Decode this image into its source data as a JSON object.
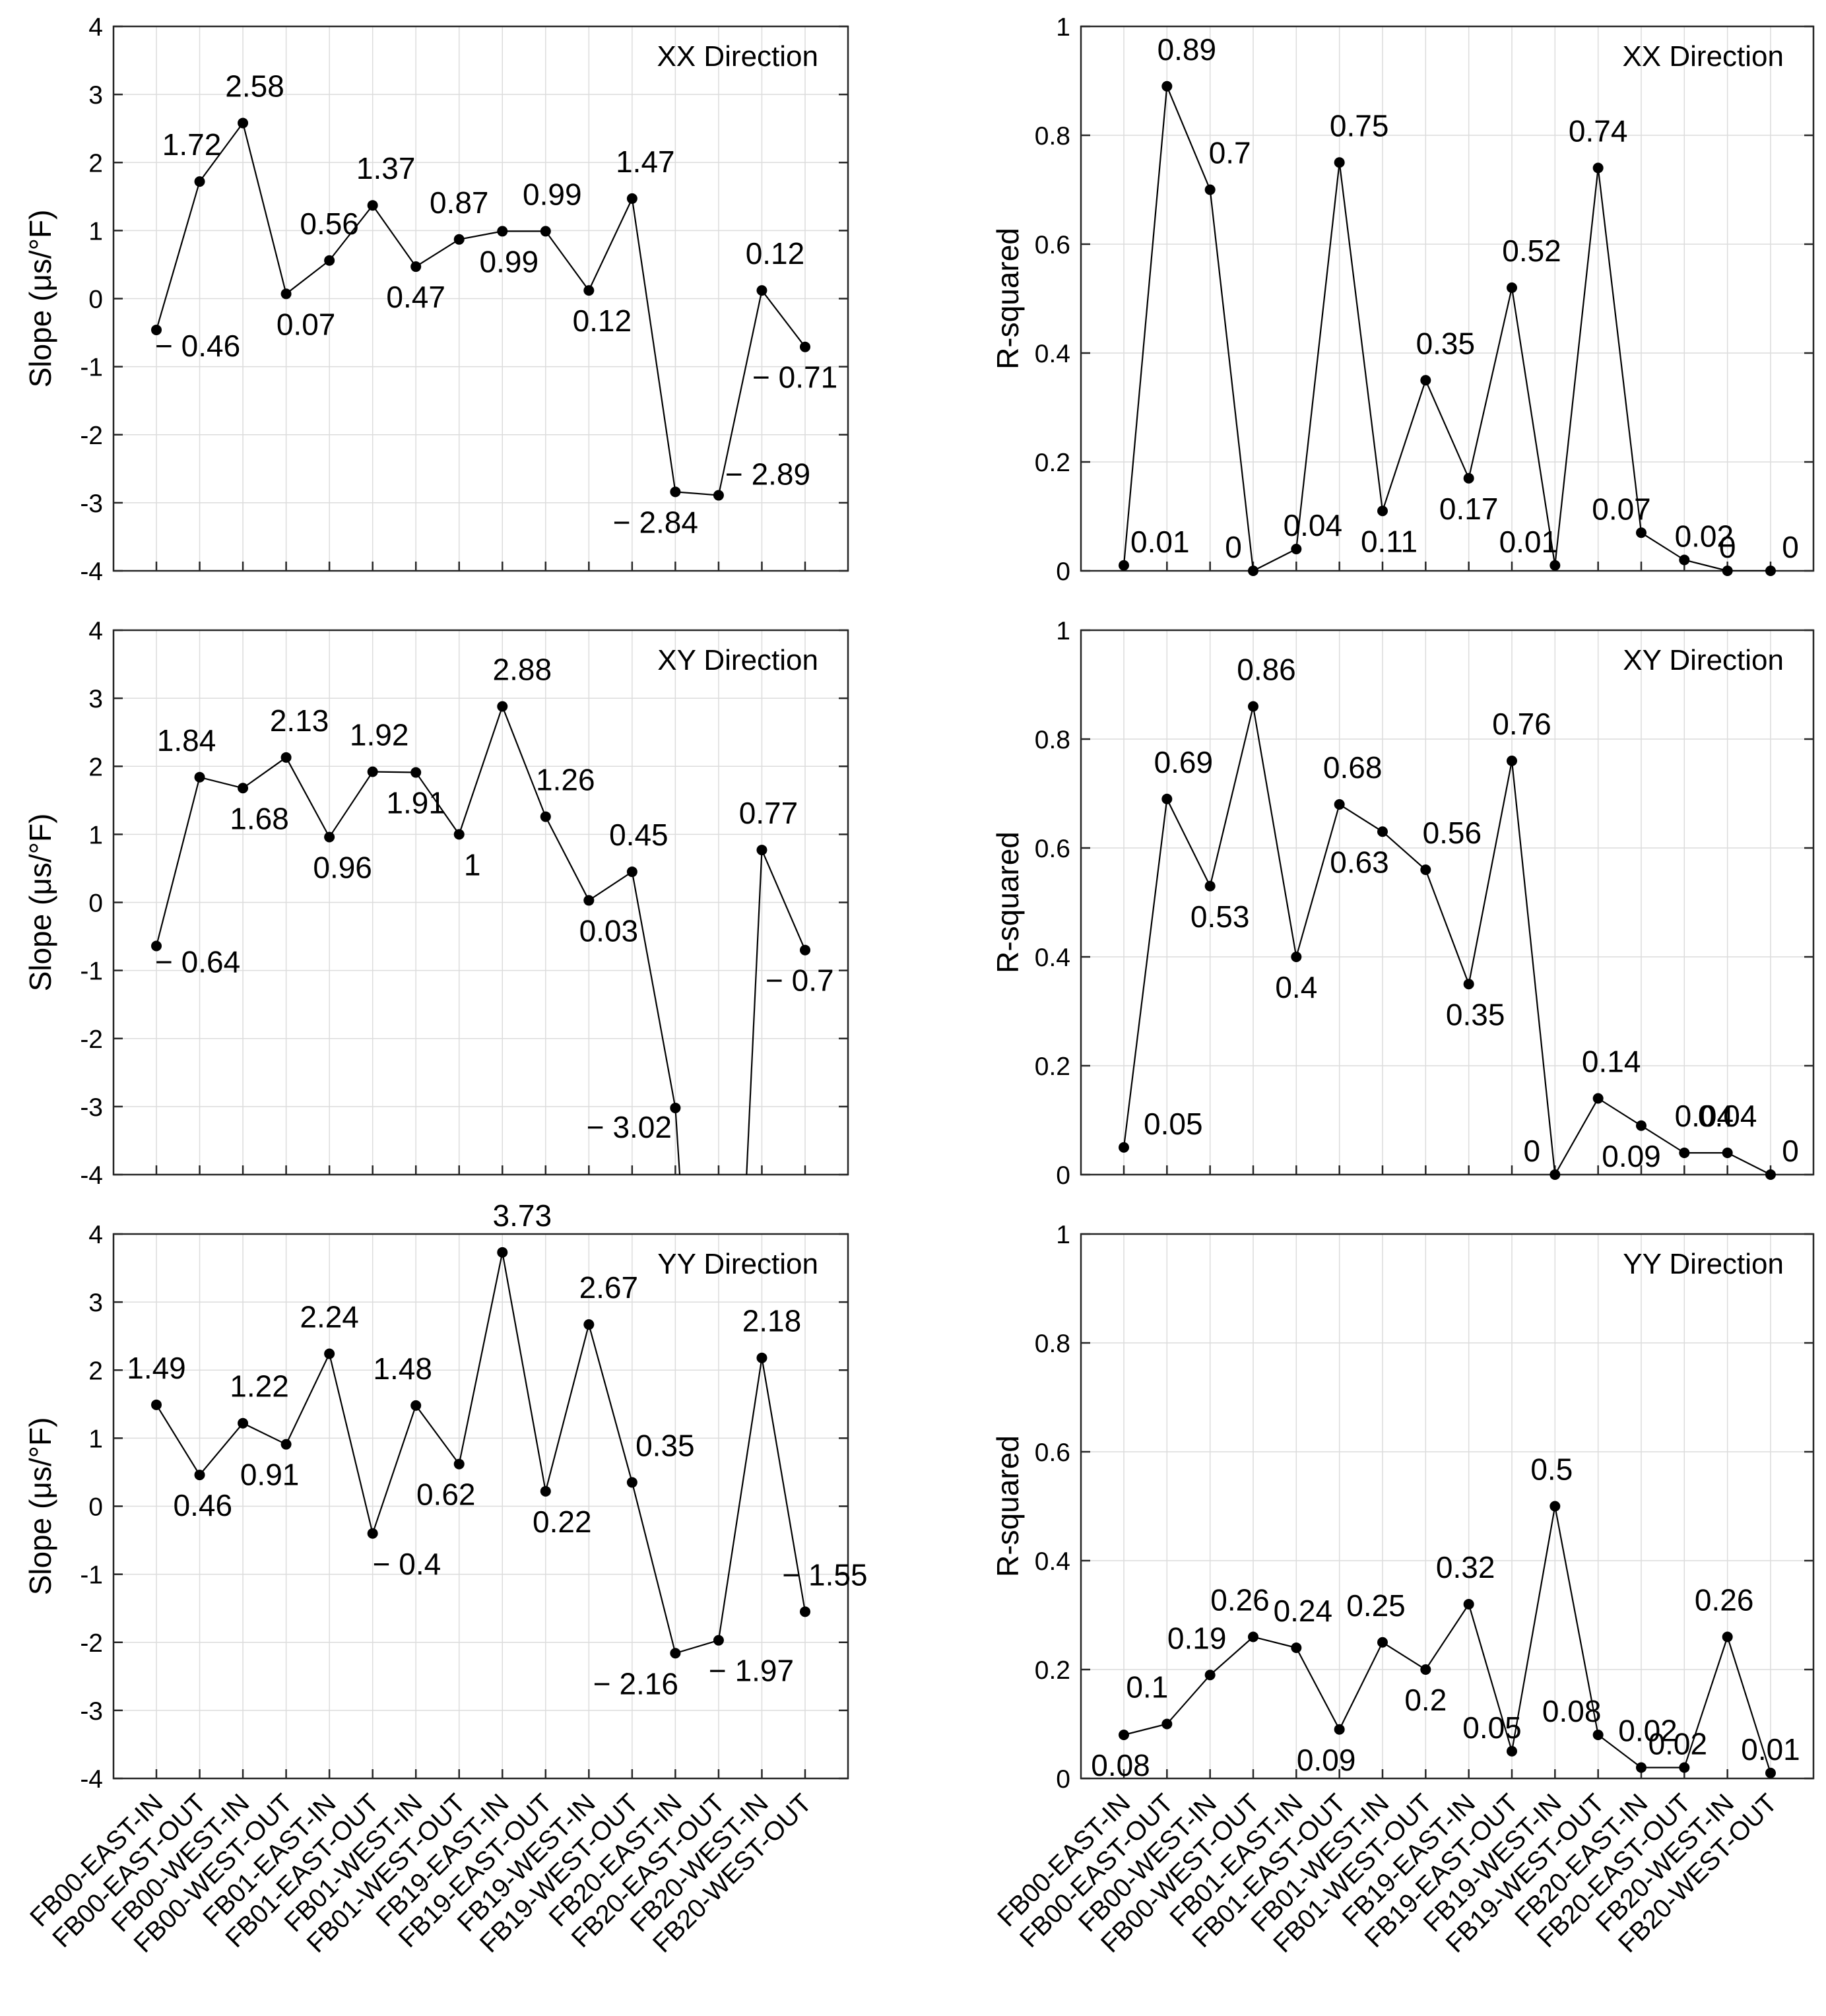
{
  "categories": [
    "FB00-EAST-IN",
    "FB00-EAST-OUT",
    "FB00-WEST-IN",
    "FB00-WEST-OUT",
    "FB01-EAST-IN",
    "FB01-EAST-OUT",
    "FB01-WEST-IN",
    "FB01-WEST-OUT",
    "FB19-EAST-IN",
    "FB19-EAST-OUT",
    "FB19-WEST-IN",
    "FB19-WEST-OUT",
    "FB20-EAST-IN",
    "FB20-EAST-OUT",
    "FB20-WEST-IN",
    "FB20-WEST-OUT"
  ],
  "chart_data": [
    {
      "type": "line",
      "title": "XX Direction",
      "ylabel": "Slope (μs/°F)",
      "ylim": [
        -4,
        4
      ],
      "yticks": [
        "4",
        "3",
        "2",
        "1",
        "0",
        "-1",
        "-2",
        "-3",
        "-4"
      ],
      "grid": true,
      "values": [
        -0.46,
        1.72,
        2.58,
        0.07,
        0.56,
        1.37,
        0.47,
        0.87,
        0.99,
        0.99,
        0.12,
        1.47,
        -2.84,
        -2.89,
        0.12,
        -0.71
      ],
      "data_labels": [
        "− 0.46",
        "1.72",
        "2.58",
        "0.07",
        "0.56",
        "1.37",
        "0.47",
        "0.87",
        "0.99",
        "0.99",
        "0.12",
        "1.47",
        "− 2.84",
        "− 2.89",
        "0.12",
        "− 0.71"
      ]
    },
    {
      "type": "line",
      "title": "XX Direction",
      "ylabel": "R-squared",
      "ylim": [
        0,
        1
      ],
      "yticks": [
        "1",
        "0.8",
        "0.6",
        "0.4",
        "0.2",
        "0"
      ],
      "grid": true,
      "values": [
        0.01,
        0.89,
        0.7,
        0.0,
        0.04,
        0.75,
        0.11,
        0.35,
        0.17,
        0.52,
        0.01,
        0.74,
        0.07,
        0.02,
        0.0,
        0.0
      ],
      "data_labels": [
        "0.01",
        "0.89",
        "0.7",
        "0",
        "0.04",
        "0.75",
        "0.11",
        "0.35",
        "0.17",
        "0.52",
        "0.01",
        "0.74",
        "0.07",
        "0.02",
        "0",
        "0"
      ]
    },
    {
      "type": "line",
      "title": "XY Direction",
      "ylabel": "Slope (μs/°F)",
      "ylim": [
        -4,
        4
      ],
      "yticks": [
        "4",
        "3",
        "2",
        "1",
        "0",
        "-1",
        "-2",
        "-3",
        "-4"
      ],
      "grid": true,
      "values": [
        -0.64,
        1.84,
        1.68,
        2.13,
        0.96,
        1.92,
        1.91,
        1.0,
        2.88,
        1.26,
        0.03,
        0.45,
        -3.02,
        null,
        0.77,
        -0.7
      ],
      "data_labels": [
        "− 0.64",
        "1.84",
        "1.68",
        "2.13",
        "0.96",
        "1.92",
        "1.91",
        "1",
        "2.88",
        "1.26",
        "0.03",
        "0.45",
        "− 3.02",
        "",
        "0.77",
        "− 0.7"
      ]
    },
    {
      "type": "line",
      "title": "XY Direction",
      "ylabel": "R-squared",
      "ylim": [
        0,
        1
      ],
      "yticks": [
        "1",
        "0.8",
        "0.6",
        "0.4",
        "0.2",
        "0"
      ],
      "grid": true,
      "values": [
        0.05,
        0.69,
        0.53,
        0.86,
        0.4,
        0.68,
        0.63,
        0.56,
        0.35,
        0.76,
        0.0,
        0.14,
        0.09,
        0.04,
        0.04,
        0.0
      ],
      "data_labels": [
        "0.05",
        "0.69",
        "0.53",
        "0.86",
        "0.4",
        "0.68",
        "0.63",
        "0.56",
        "0.35",
        "0.76",
        "0",
        "0.14",
        "0.09",
        "0.04",
        "0.04",
        "0"
      ]
    },
    {
      "type": "line",
      "title": "YY Direction",
      "ylabel": "Slope (μs/°F)",
      "ylim": [
        -4,
        4
      ],
      "yticks": [
        "4",
        "3",
        "2",
        "1",
        "0",
        "-1",
        "-2",
        "-3",
        "-4"
      ],
      "grid": true,
      "values": [
        1.49,
        0.46,
        1.22,
        0.91,
        2.24,
        -0.4,
        1.48,
        0.62,
        3.73,
        0.22,
        2.67,
        0.35,
        -2.16,
        -1.97,
        2.18,
        -1.55
      ],
      "data_labels": [
        "1.49",
        "0.46",
        "1.22",
        "0.91",
        "2.24",
        "− 0.4",
        "1.48",
        "0.62",
        "3.73",
        "0.22",
        "2.67",
        "0.35",
        "− 2.16",
        "− 1.97",
        "2.18",
        "− 1.55"
      ]
    },
    {
      "type": "line",
      "title": "YY Direction",
      "ylabel": "R-squared",
      "ylim": [
        0,
        1
      ],
      "yticks": [
        "1",
        "0.8",
        "0.6",
        "0.4",
        "0.2",
        "0"
      ],
      "grid": true,
      "values": [
        0.08,
        0.1,
        0.19,
        0.26,
        0.24,
        0.09,
        0.25,
        0.2,
        0.32,
        0.05,
        0.5,
        0.08,
        0.02,
        0.02,
        0.26,
        0.01
      ],
      "data_labels": [
        "0.08",
        "0.1",
        "0.19",
        "0.26",
        "0.24",
        "0.09",
        "0.25",
        "0.2",
        "0.32",
        "0.05",
        "0.5",
        "0.08",
        "0.02",
        "0.02",
        "0.26",
        "0.01"
      ]
    }
  ]
}
